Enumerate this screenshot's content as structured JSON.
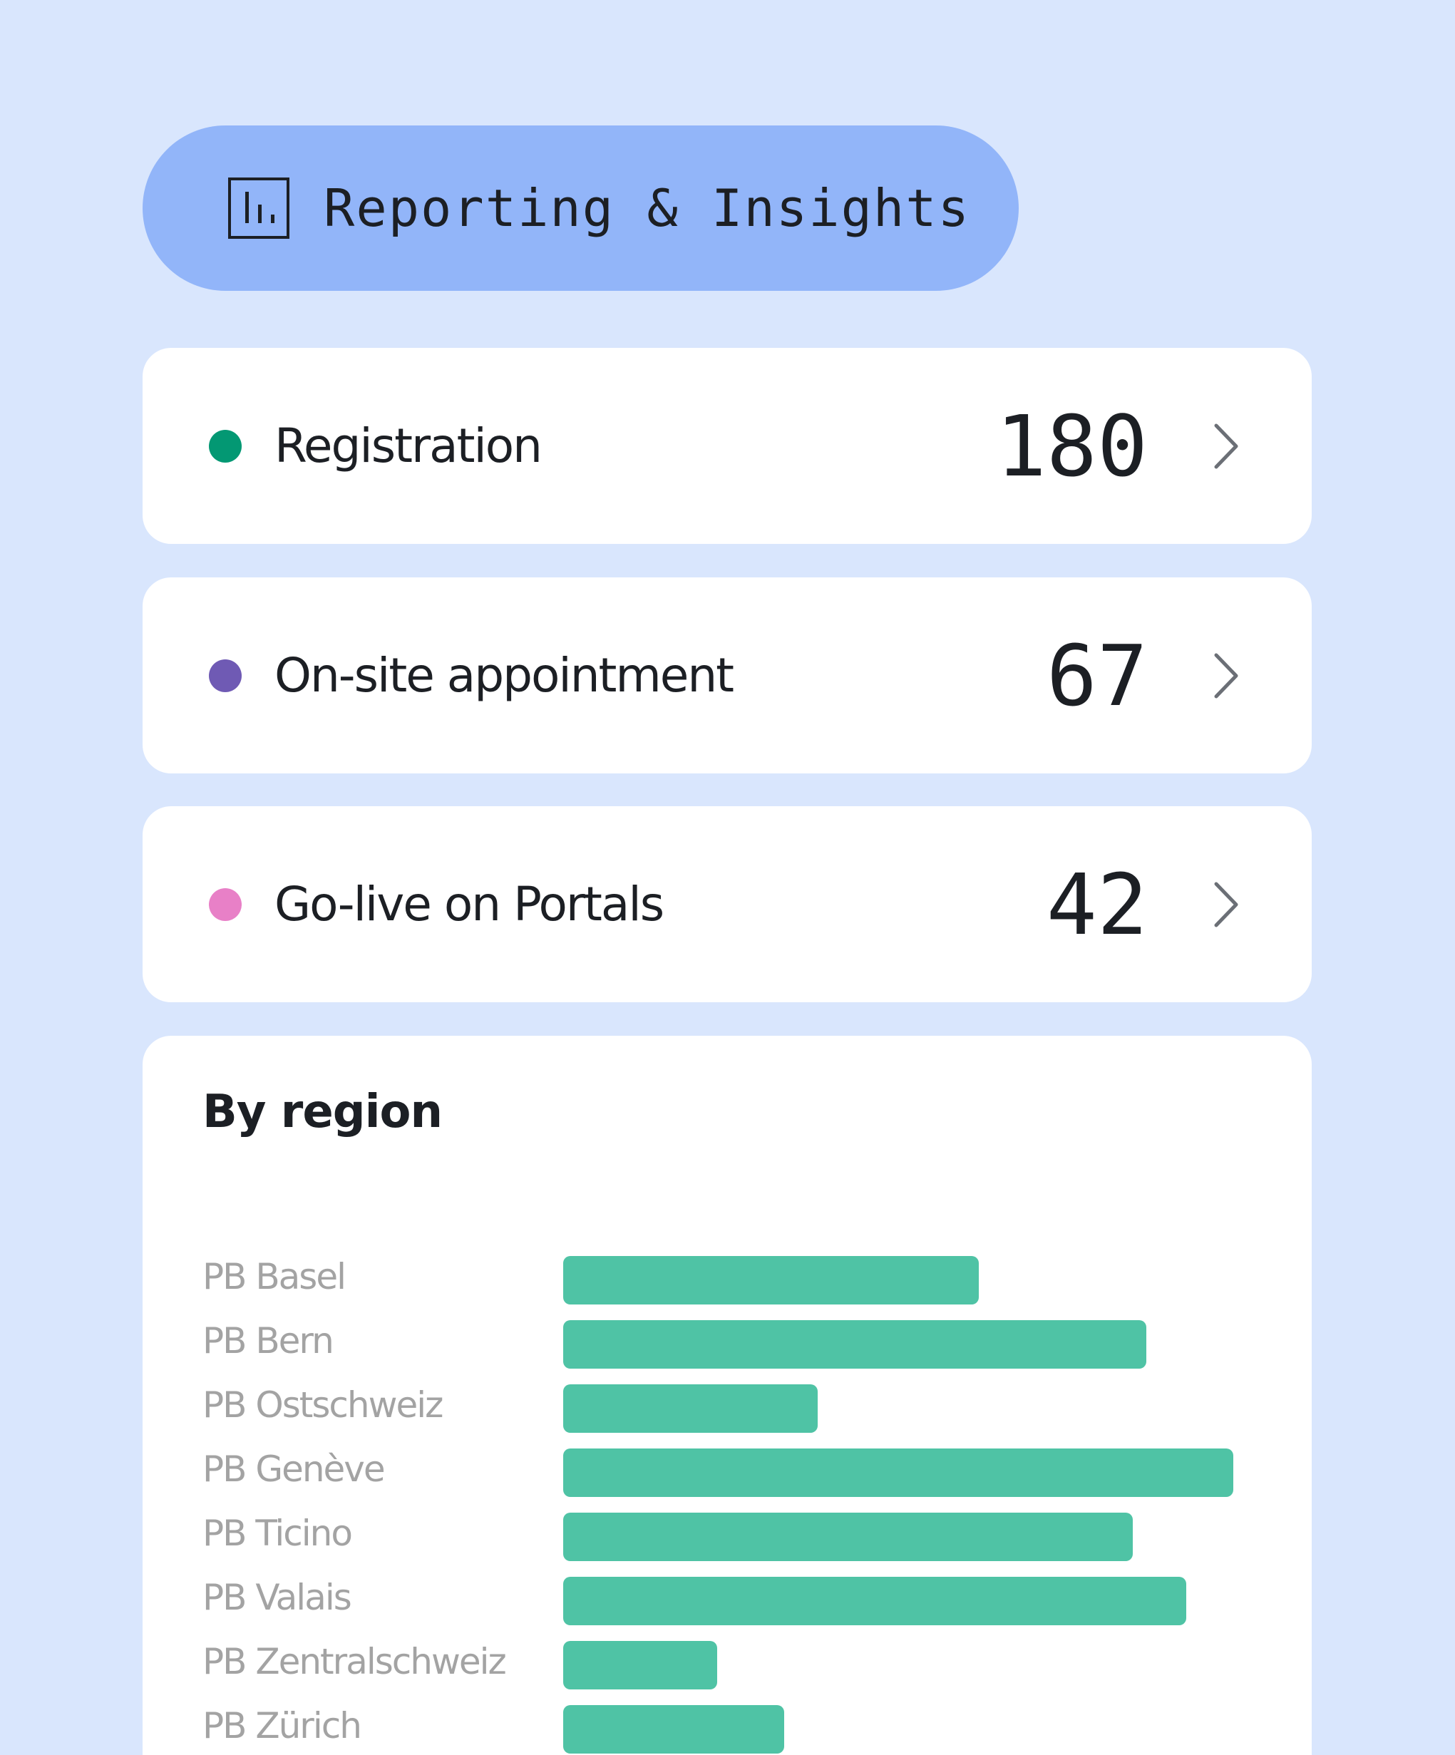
{
  "header": {
    "title": "Reporting & Insights",
    "icon": "bar-chart-icon"
  },
  "stats": [
    {
      "label": "Registration",
      "value": "180",
      "color": "#039873"
    },
    {
      "label": "On-site appointment",
      "value": "67",
      "color": "#6f5ab4"
    },
    {
      "label": "Go-live on Portals",
      "value": "42",
      "color": "#e880c7"
    }
  ],
  "colors": {
    "background": "#d9e6fd",
    "header_pill": "#92b5f9",
    "card": "#ffffff",
    "bar": "#4fc3a5",
    "region_label": "#a3a3a3",
    "text": "#1c1f24"
  },
  "region": {
    "title": "By region"
  },
  "chart_data": {
    "type": "bar",
    "orientation": "horizontal",
    "title": "By region",
    "categories": [
      "PB Basel",
      "PB Bern",
      "PB Ostschweiz",
      "PB Genève",
      "PB Ticino",
      "PB Valais",
      "PB Zentralschweiz",
      "PB Zürich"
    ],
    "values": [
      62,
      87,
      38,
      100,
      85,
      93,
      23,
      33
    ],
    "xlim": [
      0,
      100
    ],
    "grid": false
  }
}
